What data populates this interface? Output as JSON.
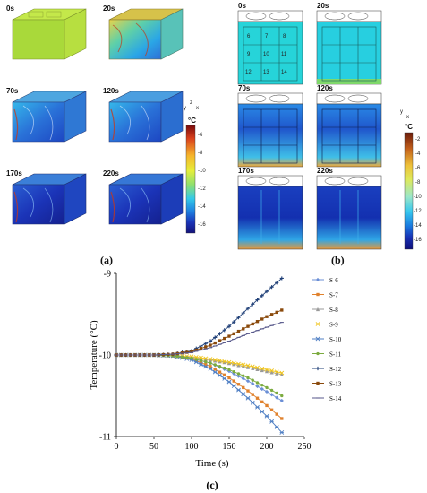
{
  "panel_a": {
    "label": "(a)",
    "time_labels": [
      "0s",
      "20s",
      "70s",
      "120s",
      "170s",
      "220s"
    ],
    "axis_glyph": [
      "y",
      "z",
      "x"
    ],
    "colorbar": {
      "unit": "°C",
      "ticks": [
        "-6",
        "-8",
        "-10",
        "-12",
        "-14",
        "-16"
      ],
      "colors": [
        "#7a0b0b",
        "#d9401c",
        "#f6b52c",
        "#e6ee3a",
        "#8fe06f",
        "#34c9e8",
        "#1f7fe0",
        "#1b34b8",
        "#14137a"
      ]
    }
  },
  "panel_b": {
    "label": "(b)",
    "time_labels": [
      "0s",
      "20s",
      "70s",
      "120s",
      "170s",
      "220s"
    ],
    "cell_numbers": [
      "6",
      "7",
      "8",
      "9",
      "10",
      "11",
      "12",
      "13",
      "14"
    ],
    "axis_glyph": [
      "y",
      "x"
    ],
    "colorbar": {
      "unit": "°C",
      "ticks": [
        "-2",
        "-4",
        "-6",
        "-8",
        "-10",
        "-12",
        "-14",
        "-16"
      ],
      "colors": [
        "#6b1a0a",
        "#c4611b",
        "#eec13a",
        "#dfe95a",
        "#9be7c9",
        "#36c6ee",
        "#1a7be0",
        "#1830b4",
        "#0e0f78"
      ]
    }
  },
  "panel_c": {
    "label": "(c)"
  },
  "chart_data": {
    "type": "line",
    "xlabel": "Time (s)",
    "ylabel": "Temperature (°C)",
    "xlim": [
      0,
      250
    ],
    "ylim": [
      -11,
      -9
    ],
    "x_ticks": [
      "0",
      "50",
      "100",
      "150",
      "200",
      "250"
    ],
    "y_ticks": [
      "-9",
      "-10",
      "-11"
    ],
    "x": [
      0,
      50,
      75,
      100,
      125,
      150,
      175,
      200,
      220
    ],
    "series": [
      {
        "name": "S-6",
        "color": "#6b8fd6",
        "marker": "diamond",
        "values": [
          -10,
          -10,
          -10.01,
          -10.04,
          -10.1,
          -10.2,
          -10.32,
          -10.45,
          -10.56
        ]
      },
      {
        "name": "S-7",
        "color": "#e0812c",
        "marker": "square",
        "values": [
          -10,
          -10,
          -10.01,
          -10.05,
          -10.14,
          -10.28,
          -10.44,
          -10.62,
          -10.78
        ]
      },
      {
        "name": "S-8",
        "color": "#9a9a9a",
        "marker": "triangle",
        "values": [
          -10,
          -10,
          -10.01,
          -10.03,
          -10.06,
          -10.1,
          -10.15,
          -10.2,
          -10.24
        ]
      },
      {
        "name": "S-9",
        "color": "#f0c419",
        "marker": "x",
        "values": [
          -10,
          -10,
          -10.01,
          -10.02,
          -10.05,
          -10.09,
          -10.13,
          -10.18,
          -10.22
        ]
      },
      {
        "name": "S-10",
        "color": "#4f7fc4",
        "marker": "star",
        "values": [
          -10,
          -10,
          -10.01,
          -10.06,
          -10.17,
          -10.33,
          -10.53,
          -10.75,
          -10.95
        ]
      },
      {
        "name": "S-11",
        "color": "#7cab3f",
        "marker": "circle",
        "values": [
          -10,
          -10,
          -10.01,
          -10.04,
          -10.1,
          -10.18,
          -10.28,
          -10.4,
          -10.5
        ]
      },
      {
        "name": "S-12",
        "color": "#1f3f77",
        "marker": "plus",
        "values": [
          -10,
          -10,
          -9.99,
          -9.95,
          -9.83,
          -9.65,
          -9.43,
          -9.22,
          -9.06
        ]
      },
      {
        "name": "S-13",
        "color": "#8a4a0c",
        "marker": "square",
        "values": [
          -10,
          -10,
          -9.99,
          -9.96,
          -9.88,
          -9.77,
          -9.65,
          -9.53,
          -9.45
        ]
      },
      {
        "name": "S-14",
        "color": "#595a8c",
        "marker": "dash",
        "values": [
          -10,
          -10,
          -9.99,
          -9.97,
          -9.91,
          -9.83,
          -9.74,
          -9.66,
          -9.6
        ]
      }
    ]
  }
}
